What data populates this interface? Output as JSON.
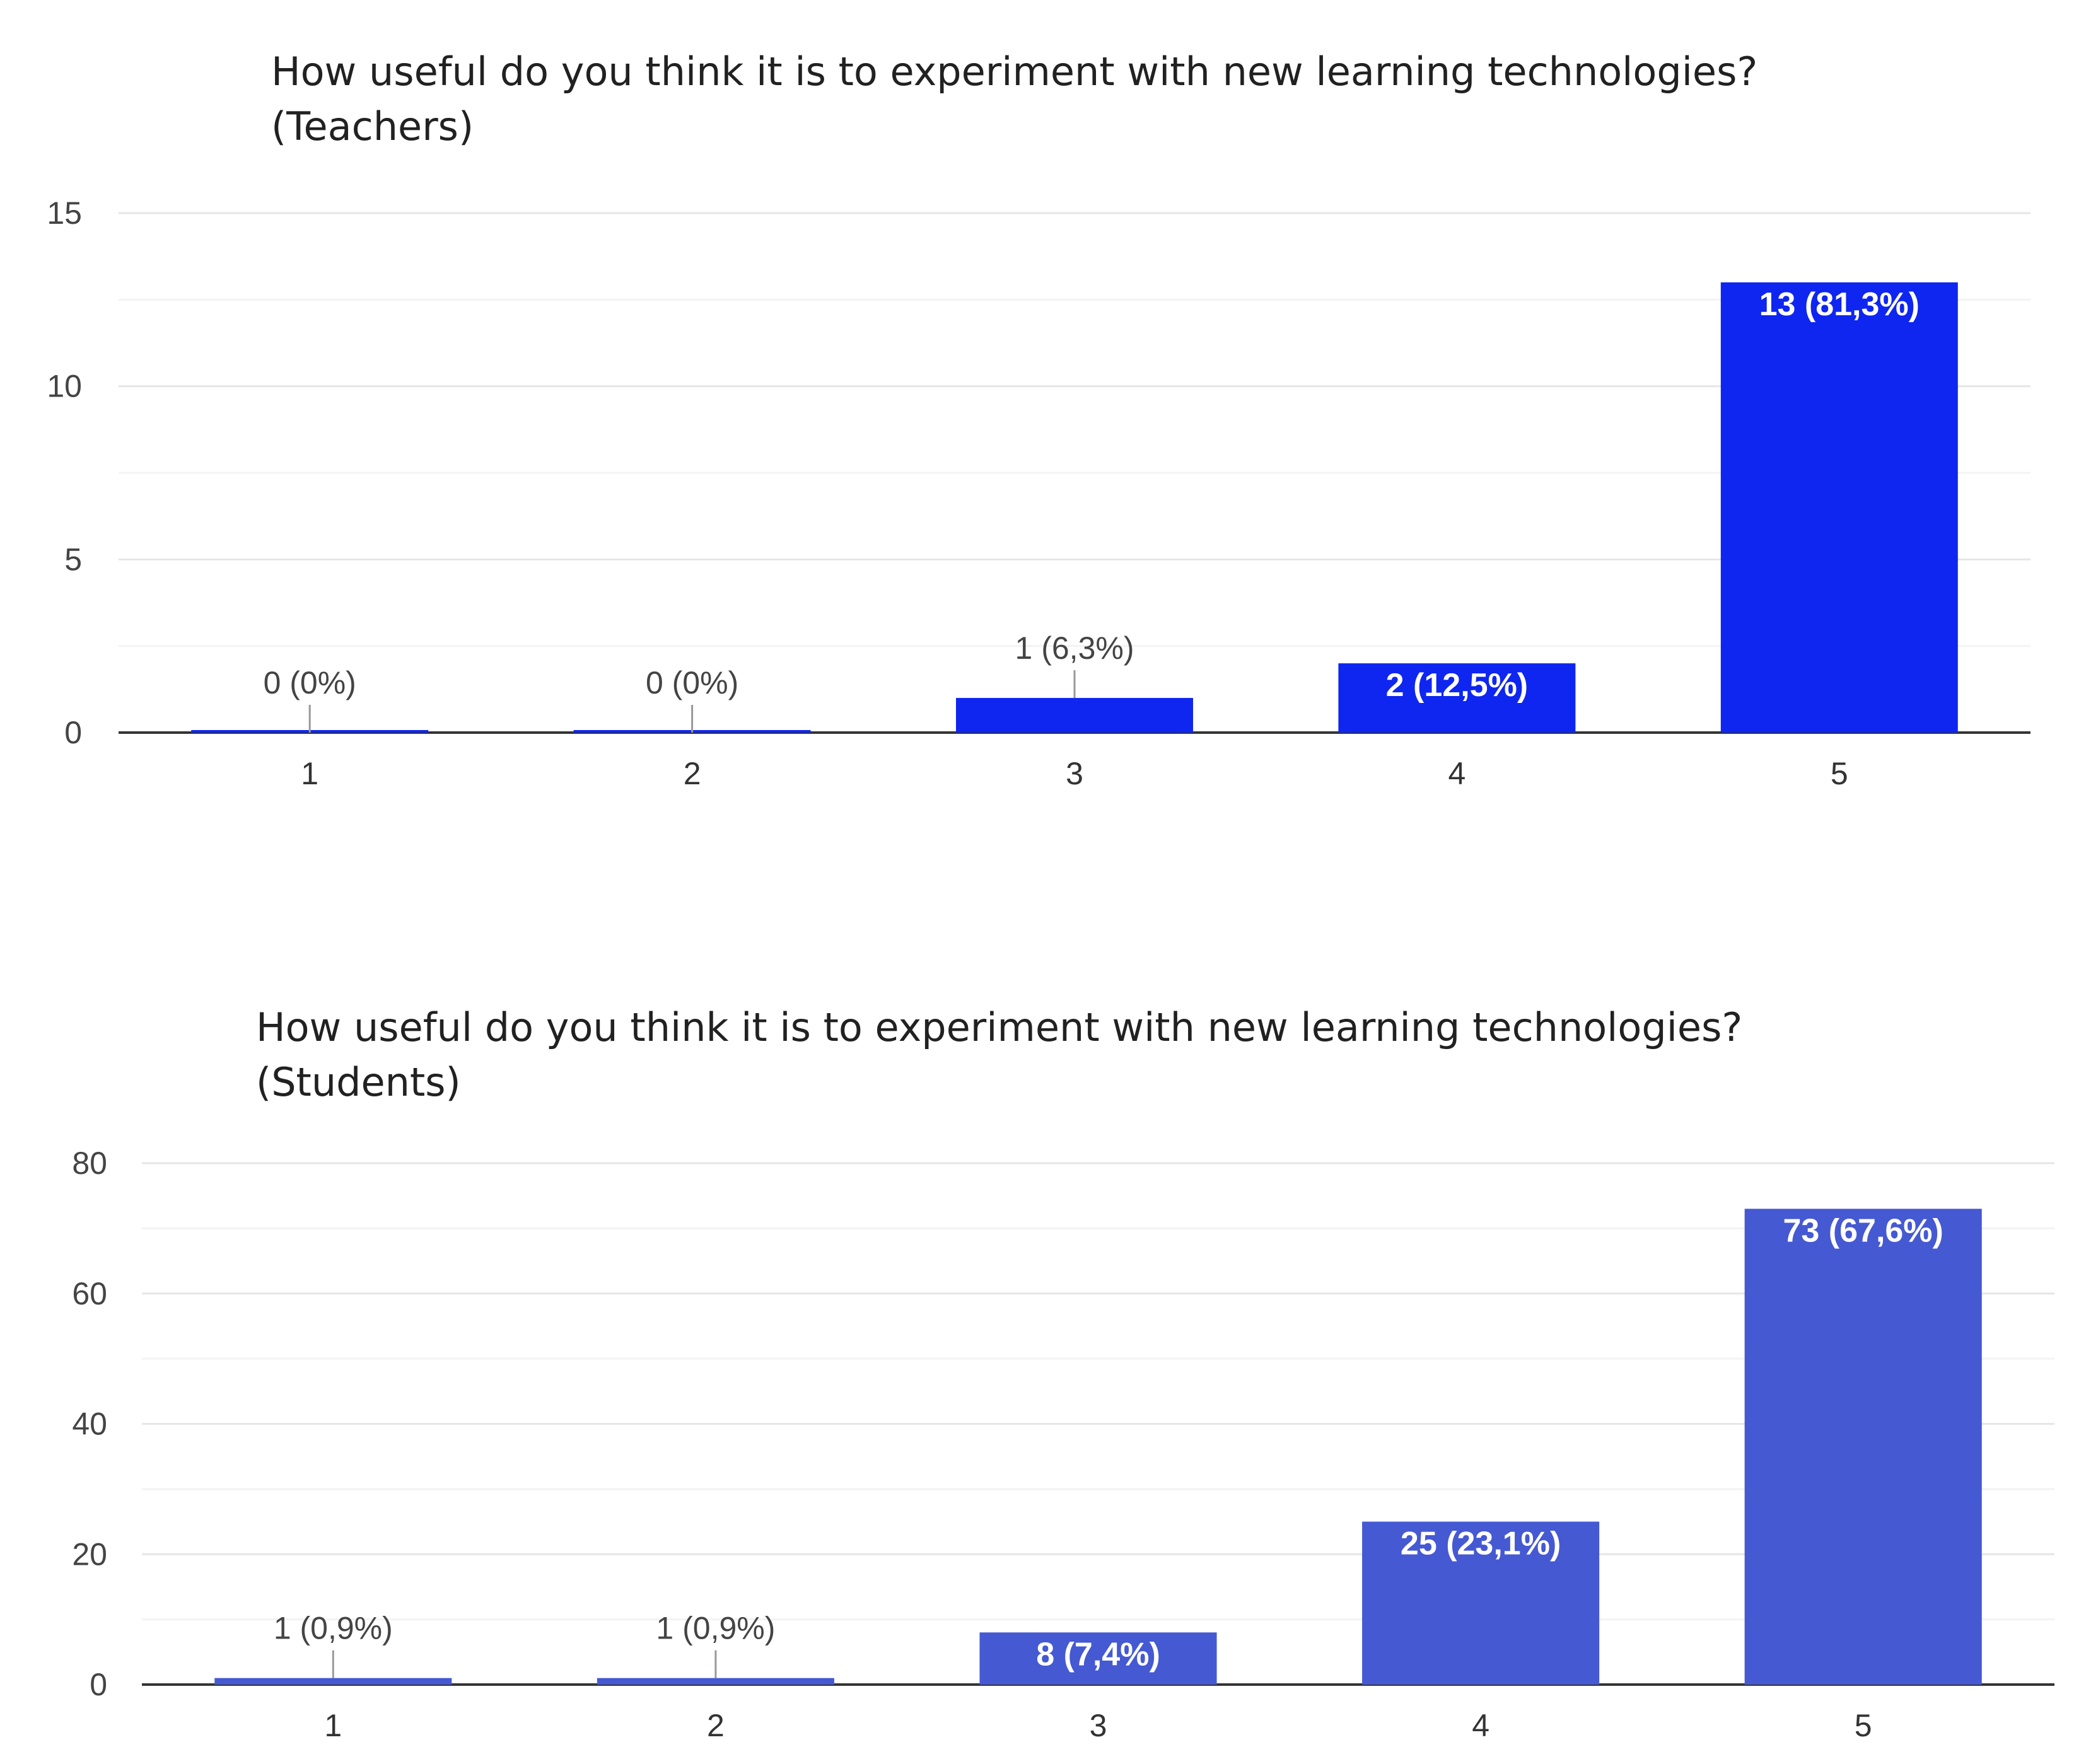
{
  "chart_data": [
    {
      "type": "bar",
      "title_line1": "How useful do you think it is to experiment with new learning technologies?",
      "title_line2": "(Teachers)",
      "categories": [
        "1",
        "2",
        "3",
        "4",
        "5"
      ],
      "values": [
        0,
        0,
        1,
        2,
        13
      ],
      "data_labels": [
        "0 (0%)",
        "0 (0%)",
        "1 (6,3%)",
        "2 (12,5%)",
        "13 (81,3%)"
      ],
      "ylim": [
        0,
        15
      ],
      "yticks": [
        "0",
        "5",
        "10",
        "15"
      ],
      "bar_color": "#0e26f0",
      "grid": true
    },
    {
      "type": "bar",
      "title_line1": "How useful do you think it is to experiment with new learning technologies?",
      "title_line2": "(Students)",
      "categories": [
        "1",
        "2",
        "3",
        "4",
        "5"
      ],
      "values": [
        1,
        1,
        8,
        25,
        73
      ],
      "data_labels": [
        "1 (0,9%)",
        "1 (0,9%)",
        "8 (7,4%)",
        "25 (23,1%)",
        "73 (67,6%)"
      ],
      "ylim": [
        0,
        80
      ],
      "yticks": [
        "0",
        "20",
        "40",
        "60",
        "80"
      ],
      "bar_color": "#4559d3",
      "grid": true
    }
  ]
}
